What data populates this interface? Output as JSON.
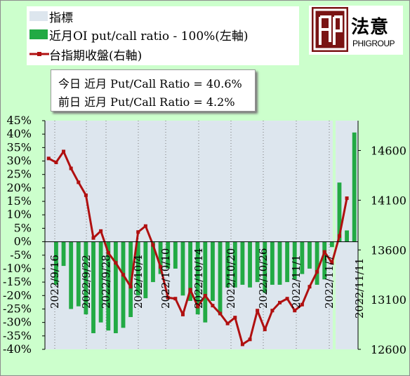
{
  "legend": {
    "index_label": "指標",
    "oi_label": "近月OI put/call ratio - 100%(左軸)",
    "close_label": "台指期收盤(右軸)"
  },
  "logo": {
    "chinese": "法意",
    "english": "PHIGROUP"
  },
  "info": {
    "today": "今日 近月 Put/Call Ratio = 40.6%",
    "previous": "前日 近月 Put/Call Ratio = 4.2%"
  },
  "colors": {
    "bar": "#22aa44",
    "line": "#b01010",
    "index_band": "#dde6ee",
    "background": "#ccffcc"
  },
  "chart_data": {
    "type": "bar+line",
    "left_axis": {
      "min": -40,
      "max": 45,
      "step": 5,
      "unit": "%",
      "ticks": [
        "45%",
        "40%",
        "35%",
        "30%",
        "25%",
        "20%",
        "15%",
        "10%",
        "5%",
        "0%",
        "-5%",
        "-10%",
        "-15%",
        "-20%",
        "-25%",
        "-30%",
        "-35%",
        "-40%"
      ]
    },
    "right_axis": {
      "min": 12600,
      "max": 14900,
      "ticks": [
        "14600",
        "14100",
        "13600",
        "13100",
        "12600"
      ]
    },
    "x_labels": [
      "2022/9/16",
      "2022/9/22",
      "2022/9/28",
      "2022/10/4",
      "2022/10/10",
      "2022/10/14",
      "2022/10/20",
      "2022/10/26",
      "2022/11/1",
      "2022/11/7",
      "2022/11/11"
    ],
    "index_band": {
      "from_label": "2022/9/16",
      "to_label": "2022/11/11",
      "span_days": 57,
      "value_range": [
        -40,
        45
      ]
    },
    "series": [
      {
        "name": "近月OI put/call ratio - 100%(左軸)",
        "kind": "bar",
        "points": [
          [
            1,
            -16
          ],
          [
            2,
            -9
          ],
          [
            3,
            -25
          ],
          [
            4,
            -24
          ],
          [
            5,
            -27
          ],
          [
            6,
            -34
          ],
          [
            7,
            -30
          ],
          [
            8,
            -33
          ],
          [
            9,
            -34
          ],
          [
            10,
            -32
          ],
          [
            11,
            -28
          ],
          [
            12,
            -20
          ],
          [
            13,
            -21
          ],
          [
            14,
            -15
          ],
          [
            15,
            -12
          ],
          [
            16,
            -10
          ],
          [
            17,
            -10
          ],
          [
            18,
            -20
          ],
          [
            19,
            -22
          ],
          [
            20,
            -27
          ],
          [
            21,
            -30
          ],
          [
            22,
            -22
          ],
          [
            23,
            -27
          ],
          [
            24,
            -17
          ],
          [
            25,
            -17
          ],
          [
            26,
            -16
          ],
          [
            27,
            -17
          ],
          [
            28,
            -15
          ],
          [
            29,
            -19
          ],
          [
            30,
            -16
          ],
          [
            31,
            -16
          ],
          [
            32,
            -15
          ],
          [
            33,
            -14
          ],
          [
            34,
            -12
          ],
          [
            35,
            -10
          ],
          [
            36,
            -16
          ],
          [
            37,
            -14
          ],
          [
            38,
            -2
          ],
          [
            39,
            22
          ],
          [
            40,
            4.2
          ],
          [
            41,
            40.6
          ]
        ]
      },
      {
        "name": "台指期收盤(右軸)",
        "kind": "line",
        "points": [
          [
            0,
            14520
          ],
          [
            1,
            14480
          ],
          [
            2,
            14590
          ],
          [
            3,
            14420
          ],
          [
            4,
            14280
          ],
          [
            5,
            14150
          ],
          [
            6,
            13720
          ],
          [
            7,
            13790
          ],
          [
            8,
            13570
          ],
          [
            9,
            13470
          ],
          [
            10,
            13350
          ],
          [
            11,
            13230
          ],
          [
            12,
            13780
          ],
          [
            13,
            13840
          ],
          [
            14,
            13650
          ],
          [
            15,
            13430
          ],
          [
            16,
            13120
          ],
          [
            17,
            13110
          ],
          [
            18,
            12950
          ],
          [
            19,
            13200
          ],
          [
            20,
            13030
          ],
          [
            21,
            13140
          ],
          [
            22,
            13040
          ],
          [
            23,
            12960
          ],
          [
            24,
            12860
          ],
          [
            25,
            12920
          ],
          [
            26,
            12650
          ],
          [
            27,
            12700
          ],
          [
            28,
            12990
          ],
          [
            29,
            12800
          ],
          [
            30,
            12990
          ],
          [
            31,
            13070
          ],
          [
            32,
            13110
          ],
          [
            33,
            12990
          ],
          [
            34,
            13050
          ],
          [
            35,
            13230
          ],
          [
            36,
            13380
          ],
          [
            37,
            13580
          ],
          [
            38,
            13470
          ],
          [
            39,
            13740
          ],
          [
            40,
            14120
          ]
        ]
      }
    ]
  }
}
